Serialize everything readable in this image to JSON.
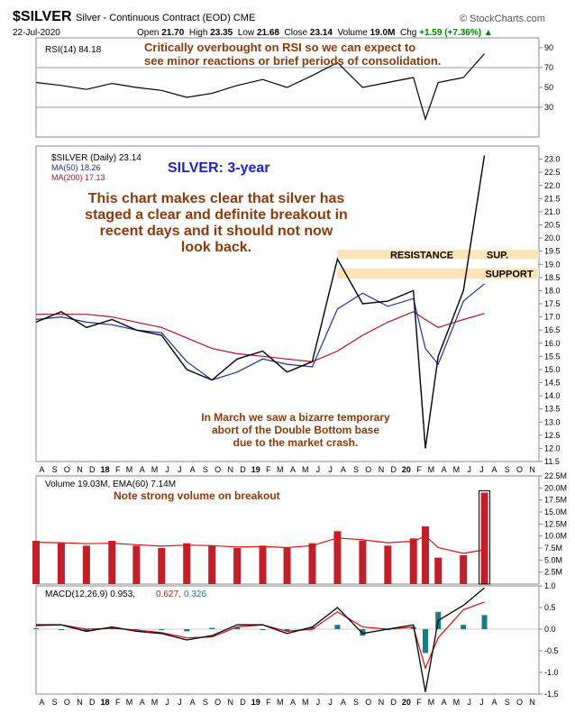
{
  "header": {
    "symbol": "$SILVER",
    "subtitle": "Silver - Continuous Contract (EOD) CME",
    "date": "22-Jul-2020",
    "open_label": "Open",
    "open": "21.70",
    "high_label": "High",
    "high": "23.35",
    "low_label": "Low",
    "low": "21.68",
    "close_label": "Close",
    "close": "23.14",
    "volume_label": "Volume",
    "volume": "19.0M",
    "chg_label": "Chg",
    "chg": "+1.59 (+7.36%)",
    "chg_arrow": "▲",
    "brand": "© StockCharts.com"
  },
  "colors": {
    "price": "#000000",
    "ma50": "#1f2fa0",
    "ma200": "#b01030",
    "volume": "#c0202a",
    "ema60": "#e01010",
    "macd": "#000000",
    "signal": "#d01010",
    "hist": "#1a7a8a",
    "annotation": "#8b3a0a",
    "band": "#fde3b8",
    "title_blue": "#2222cc"
  },
  "chart_data": [
    {
      "type": "line",
      "panel": "rsi",
      "legend": "RSI(14) 84.18",
      "ylim": [
        0,
        100
      ],
      "ticks": [
        30,
        50,
        70,
        90
      ],
      "reference_lines": [
        30,
        70
      ],
      "annotation": [
        "Critically overbought on RSI so we can expect to",
        "see minor reactions or brief periods of consolidation."
      ],
      "x": [
        "2017-08",
        "2017-10",
        "2017-12",
        "2018-02",
        "2018-04",
        "2018-06",
        "2018-08",
        "2018-10",
        "2018-12",
        "2019-02",
        "2019-04",
        "2019-06",
        "2019-08",
        "2019-10",
        "2019-12",
        "2020-02",
        "2020-03",
        "2020-04",
        "2020-06",
        "2020-07-22"
      ],
      "values": [
        55,
        52,
        48,
        54,
        50,
        47,
        40,
        44,
        52,
        58,
        50,
        62,
        75,
        50,
        55,
        60,
        18,
        55,
        60,
        84
      ]
    },
    {
      "type": "line",
      "panel": "price",
      "title": "SILVER: 3-year",
      "legend_price": "$SILVER (Daily) 23.14",
      "legend_ma50": "MA(50) 18.26",
      "legend_ma200": "MA(200) 17.13",
      "ylim": [
        11.5,
        23.5
      ],
      "ticks": [
        11.5,
        12.0,
        12.5,
        13.0,
        13.5,
        14.0,
        14.5,
        15.0,
        15.5,
        16.0,
        16.5,
        17.0,
        17.5,
        18.0,
        18.5,
        19.0,
        19.5,
        20.0,
        20.5,
        21.0,
        21.5,
        22.0,
        22.5,
        23.0
      ],
      "tick_labels": [
        "11.5",
        "12.0",
        "12.5",
        "13.0",
        "13.5",
        "14.0",
        "14.5",
        "15.0",
        "15.5",
        "16.0",
        "16.5",
        "17.0",
        "17.5",
        "18.0",
        "18.5",
        "19.0",
        "19.5",
        "20.0",
        "20.5",
        "21.0",
        "21.5",
        "22.0",
        "22.5",
        "23.0"
      ],
      "months": [
        "A",
        "S",
        "O",
        "N",
        "D",
        "18",
        "F",
        "M",
        "A",
        "M",
        "J",
        "J",
        "A",
        "S",
        "O",
        "N",
        "D",
        "19",
        "F",
        "M",
        "A",
        "M",
        "J",
        "J",
        "A",
        "S",
        "O",
        "N",
        "D",
        "20",
        "F",
        "M",
        "A",
        "M",
        "J",
        "J",
        "A",
        "S",
        "O",
        "N"
      ],
      "x": [
        "2017-08",
        "2017-10",
        "2017-12",
        "2018-02",
        "2018-04",
        "2018-06",
        "2018-08",
        "2018-10",
        "2018-12",
        "2019-02",
        "2019-04",
        "2019-06",
        "2019-08",
        "2019-10",
        "2019-12",
        "2020-02",
        "2020-03",
        "2020-04",
        "2020-06",
        "2020-07-22"
      ],
      "series": [
        {
          "name": "$SILVER (Daily)",
          "values": [
            16.8,
            17.2,
            16.6,
            16.9,
            16.5,
            16.3,
            15.0,
            14.6,
            15.4,
            15.7,
            14.9,
            15.3,
            19.2,
            17.5,
            17.6,
            18.0,
            12.0,
            15.5,
            18.0,
            23.14
          ]
        },
        {
          "name": "MA(50)",
          "values": [
            16.9,
            17.0,
            16.8,
            16.7,
            16.5,
            16.4,
            15.3,
            14.6,
            14.9,
            15.4,
            15.2,
            15.1,
            17.3,
            17.9,
            17.4,
            17.7,
            15.8,
            15.2,
            17.6,
            18.26
          ]
        },
        {
          "name": "MA(200)",
          "values": [
            17.1,
            17.1,
            17.1,
            17.0,
            16.8,
            16.6,
            16.2,
            15.8,
            15.6,
            15.5,
            15.4,
            15.3,
            15.7,
            16.3,
            16.8,
            17.2,
            16.9,
            16.6,
            16.9,
            17.13
          ]
        }
      ],
      "bands": [
        {
          "label": "RESISTANCE",
          "label2": "SUP.",
          "y_low": 19.2,
          "y_high": 19.55
        },
        {
          "label": "SUPPORT",
          "y_low": 18.45,
          "y_high": 18.85
        }
      ],
      "annotations": [
        [
          "This chart makes clear that silver has",
          "staged a clear and definite breakout in",
          "recent days and it should not now",
          "look back."
        ],
        [
          "In March we saw a bizarre temporary",
          "abort of the Double Bottom base",
          "due to the market crash."
        ]
      ]
    },
    {
      "type": "bar",
      "panel": "volume",
      "legend": "Volume 19.03M, EMA(60) 7.14M",
      "annotation": "Note strong volume on breakout",
      "ylim": [
        0,
        22.5
      ],
      "ticks": [
        2.5,
        5.0,
        7.5,
        10.0,
        12.5,
        15.0,
        17.5,
        20.0,
        22.5
      ],
      "tick_labels": [
        "2.5M",
        "5.0M",
        "7.5M",
        "10.0M",
        "12.5M",
        "15.0M",
        "17.5M",
        "20.0M",
        "22.5M"
      ],
      "x": [
        "2017-08",
        "2017-10",
        "2017-12",
        "2018-02",
        "2018-04",
        "2018-06",
        "2018-08",
        "2018-10",
        "2018-12",
        "2019-02",
        "2019-04",
        "2019-06",
        "2019-08",
        "2019-10",
        "2019-12",
        "2020-02",
        "2020-03",
        "2020-04",
        "2020-06",
        "2020-07-22"
      ],
      "values": [
        9.0,
        8.5,
        8.0,
        9.0,
        8.0,
        7.5,
        8.5,
        8.0,
        7.5,
        8.0,
        7.5,
        8.5,
        11.0,
        9.0,
        8.0,
        9.5,
        12.0,
        5.5,
        6.0,
        19.03
      ],
      "ema_values": [
        8.7,
        8.6,
        8.4,
        8.5,
        8.2,
        7.9,
        8.1,
        8.0,
        7.7,
        7.8,
        7.6,
        8.0,
        9.6,
        9.2,
        8.6,
        8.9,
        10.0,
        7.6,
        6.4,
        7.14
      ]
    },
    {
      "type": "line",
      "panel": "macd",
      "legend_macd": "MACD(12,26,9) 0.953,",
      "legend_signal": "0.627,",
      "legend_hist": "0.326",
      "ylim": [
        -1.5,
        1.0
      ],
      "ticks": [
        -1.5,
        -1.0,
        -0.5,
        0.0,
        0.5,
        1.0
      ],
      "tick_labels": [
        "-1.5",
        "-1.0",
        "-0.5",
        "0.0",
        "0.5",
        "1.0"
      ],
      "months": [
        "A",
        "S",
        "O",
        "N",
        "D",
        "18",
        "F",
        "M",
        "A",
        "M",
        "J",
        "J",
        "A",
        "S",
        "O",
        "N",
        "D",
        "19",
        "F",
        "M",
        "A",
        "M",
        "J",
        "J",
        "A",
        "S",
        "O",
        "N",
        "D",
        "20",
        "F",
        "M",
        "A",
        "M",
        "J",
        "J",
        "A",
        "S",
        "O",
        "N"
      ],
      "x": [
        "2017-08",
        "2017-10",
        "2017-12",
        "2018-02",
        "2018-04",
        "2018-06",
        "2018-08",
        "2018-10",
        "2018-12",
        "2019-02",
        "2019-04",
        "2019-06",
        "2019-08",
        "2019-10",
        "2019-12",
        "2020-02",
        "2020-03",
        "2020-04",
        "2020-06",
        "2020-07-22"
      ],
      "series": [
        {
          "name": "MACD(12,26,9)",
          "values": [
            0.1,
            0.1,
            -0.05,
            0.05,
            -0.05,
            -0.1,
            -0.25,
            -0.15,
            0.1,
            0.1,
            -0.1,
            0.05,
            0.5,
            -0.1,
            0.0,
            0.1,
            -1.45,
            0.2,
            0.55,
            0.953
          ]
        },
        {
          "name": "signal",
          "values": [
            0.08,
            0.1,
            0.0,
            0.02,
            -0.02,
            -0.08,
            -0.2,
            -0.18,
            0.05,
            0.1,
            -0.05,
            0.0,
            0.4,
            0.05,
            0.0,
            0.05,
            -0.9,
            -0.2,
            0.45,
            0.627
          ]
        },
        {
          "name": "histogram",
          "values": [
            0.02,
            0.0,
            -0.05,
            0.03,
            -0.03,
            -0.02,
            -0.05,
            0.03,
            0.05,
            0.0,
            -0.05,
            0.05,
            0.1,
            -0.15,
            0.0,
            0.05,
            -0.55,
            0.4,
            0.1,
            0.326
          ]
        }
      ]
    }
  ]
}
